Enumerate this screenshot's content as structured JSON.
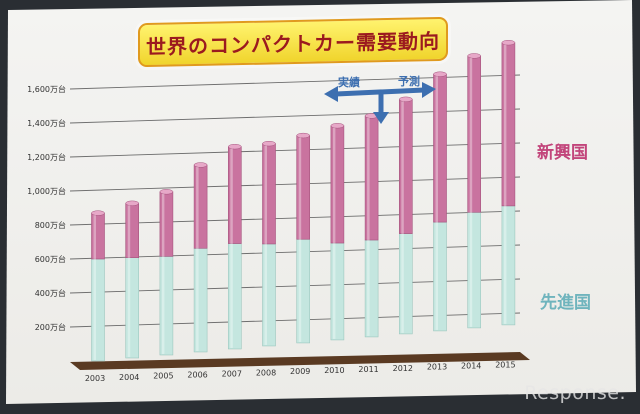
{
  "title": "世界のコンパクトカー需要動向",
  "legend": {
    "emerging": "新興国",
    "developed": "先進国"
  },
  "annotation": {
    "actual": "実績",
    "forecast": "予測"
  },
  "watermark": "Response.",
  "colors": {
    "developed": "#c4e6df",
    "emerging": "#c9739f",
    "label_emerging": "#c2457b",
    "label_developed": "#6fb4bd",
    "arrow": "#3d6fb0",
    "floor": "#5a3a22"
  },
  "chart_data": {
    "type": "bar",
    "stacked": true,
    "categories": [
      "2003",
      "2004",
      "2005",
      "2006",
      "2007",
      "2008",
      "2009",
      "2010",
      "2011",
      "2012",
      "2013",
      "2014",
      "2015"
    ],
    "series": [
      {
        "name": "先進国",
        "values": [
          600,
          590,
          580,
          610,
          620,
          600,
          610,
          570,
          570,
          590,
          640,
          680,
          700
        ]
      },
      {
        "name": "新興国",
        "values": [
          270,
          320,
          380,
          490,
          570,
          590,
          610,
          690,
          730,
          790,
          870,
          920,
          960
        ]
      }
    ],
    "ylim": [
      0,
      1700
    ],
    "yticks": [
      200,
      400,
      600,
      800,
      1000,
      1200,
      1400,
      1600
    ],
    "ytick_labels": [
      "200万台",
      "400万台",
      "600万台",
      "800万台",
      "1,000万台",
      "1,200万台",
      "1,400万台",
      "1,600万台"
    ],
    "grid": true
  }
}
